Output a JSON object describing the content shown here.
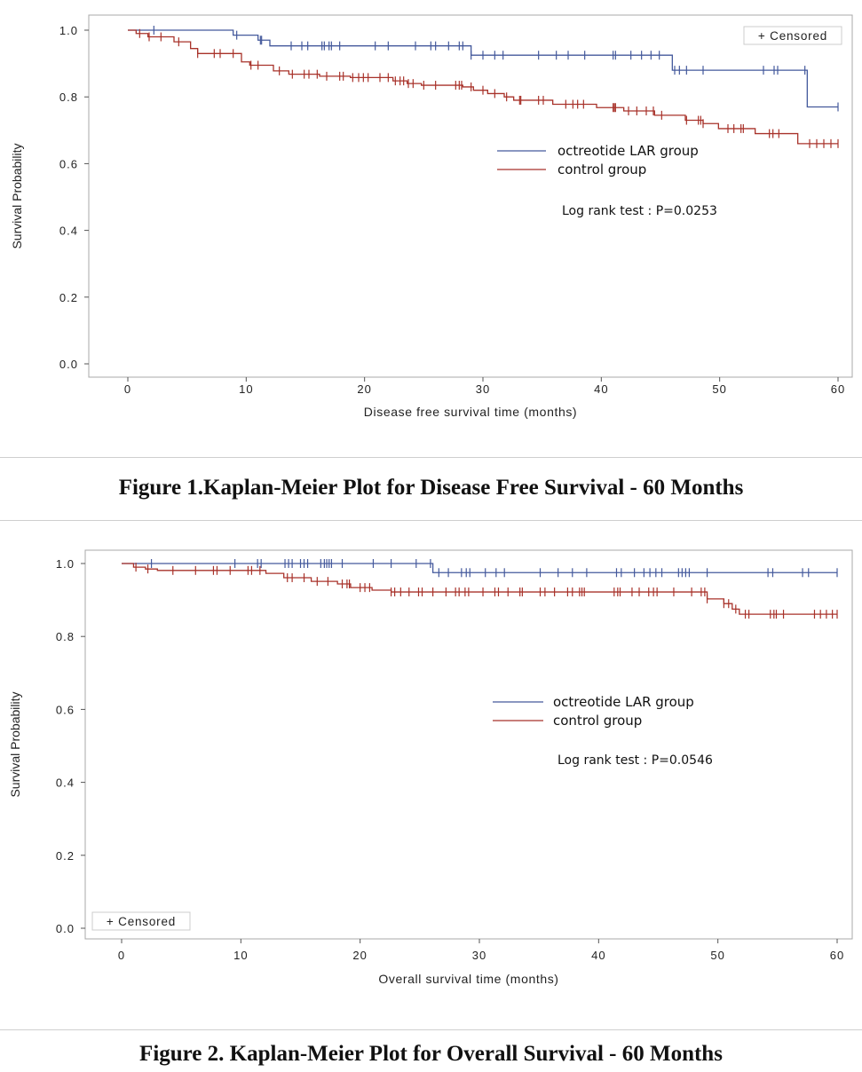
{
  "colors": {
    "octreotide": "#44599c",
    "control": "#a8322a",
    "frame": "#a8a8a8"
  },
  "chart_data": [
    {
      "type": "line",
      "subtype": "kaplan-meier step",
      "caption": "Figure 1.Kaplan-Meier Plot for Disease Free Survival - 60 Months",
      "xlabel": "Disease free survival time (months)",
      "ylabel": "Survival Probability",
      "xlim": [
        0,
        60
      ],
      "ylim": [
        0,
        1
      ],
      "xticks": [
        "0",
        "10",
        "20",
        "30",
        "40",
        "50",
        "60"
      ],
      "yticks": [
        "0.0",
        "0.2",
        "0.4",
        "0.6",
        "0.8",
        "1.0"
      ],
      "censored_legend": "+ Censored",
      "censored_legend_position": "top-right",
      "annotation": "Log rank test : P=0.0253",
      "series": [
        {
          "name": "octreotide LAR group",
          "color": "#44599c",
          "steps": [
            [
              0,
              1.0
            ],
            [
              8.9,
              0.985
            ],
            [
              11,
              0.97
            ],
            [
              12,
              0.953
            ],
            [
              29,
              0.925
            ],
            [
              46,
              0.88
            ],
            [
              57.4,
              0.77
            ],
            [
              60,
              0.77
            ]
          ],
          "censored": [
            2.2,
            9.2,
            11.2,
            11.3,
            13.8,
            14.7,
            15.2,
            16.4,
            16.6,
            17,
            17.2,
            17.9,
            20.9,
            22,
            24.3,
            25.6,
            26,
            27.1,
            28,
            28.3,
            29,
            30,
            31,
            31.7,
            34.7,
            36.2,
            37.2,
            38.6,
            41,
            41.2,
            42.5,
            43.4,
            44.2,
            44.9,
            46.2,
            46.6,
            47.2,
            48.6,
            53.7,
            54.6,
            54.9,
            57.2,
            60
          ]
        },
        {
          "name": "control group",
          "color": "#a8322a",
          "steps": [
            [
              0,
              1.0
            ],
            [
              0.7,
              0.99
            ],
            [
              1.7,
              0.98
            ],
            [
              3.9,
              0.965
            ],
            [
              5.3,
              0.945
            ],
            [
              5.9,
              0.93
            ],
            [
              9.6,
              0.905
            ],
            [
              10.3,
              0.895
            ],
            [
              12.3,
              0.878
            ],
            [
              13.6,
              0.868
            ],
            [
              16.2,
              0.862
            ],
            [
              18.8,
              0.858
            ],
            [
              22.4,
              0.848
            ],
            [
              23.6,
              0.84
            ],
            [
              24.8,
              0.835
            ],
            [
              28.3,
              0.83
            ],
            [
              29.2,
              0.82
            ],
            [
              30.4,
              0.81
            ],
            [
              31.8,
              0.8
            ],
            [
              32.6,
              0.79
            ],
            [
              35.9,
              0.778
            ],
            [
              39.6,
              0.768
            ],
            [
              41.9,
              0.758
            ],
            [
              44.5,
              0.745
            ],
            [
              47.1,
              0.73
            ],
            [
              48.6,
              0.72
            ],
            [
              49.9,
              0.705
            ],
            [
              53,
              0.69
            ],
            [
              56.6,
              0.66
            ],
            [
              60,
              0.66
            ]
          ],
          "censored": [
            1,
            1.8,
            2.8,
            4.3,
            5.9,
            7.3,
            7.8,
            8.9,
            10.4,
            11,
            12.8,
            13.9,
            14.9,
            15.3,
            16,
            16.8,
            17.9,
            18.2,
            19,
            19.5,
            19.9,
            20.3,
            21.3,
            22,
            22.6,
            23,
            23.3,
            23.7,
            24.1,
            25,
            26,
            27.7,
            28,
            28.2,
            29,
            30,
            31,
            32,
            33.1,
            33.2,
            34.7,
            35.1,
            37,
            37.6,
            38,
            38.5,
            41,
            41.1,
            41.2,
            42.3,
            43,
            43.8,
            44.4,
            45.1,
            47.2,
            48.2,
            48.4,
            48.6,
            50.7,
            51.2,
            51.8,
            52,
            54.2,
            54.5,
            55,
            57.6,
            58.2,
            58.8,
            59.4,
            60
          ]
        }
      ]
    },
    {
      "type": "line",
      "subtype": "kaplan-meier step",
      "caption": "Figure 2. Kaplan-Meier Plot for Overall Survival - 60 Months",
      "xlabel": "Overall survival time (months)",
      "ylabel": "Survival Probability",
      "xlim": [
        0,
        60
      ],
      "ylim": [
        0,
        1
      ],
      "xticks": [
        "0",
        "10",
        "20",
        "30",
        "40",
        "50",
        "60"
      ],
      "yticks": [
        "0.0",
        "0.2",
        "0.4",
        "0.6",
        "0.8",
        "1.0"
      ],
      "censored_legend": "+ Censored",
      "censored_legend_position": "bottom-left",
      "annotation": "Log rank test : P=0.0546",
      "series": [
        {
          "name": "octreotide LAR group",
          "color": "#44599c",
          "steps": [
            [
              0,
              1.0
            ],
            [
              26.1,
              0.975
            ],
            [
              60,
              0.975
            ]
          ],
          "censored": [
            2.5,
            9.5,
            11.4,
            11.7,
            13.7,
            14,
            14.3,
            15,
            15.3,
            15.6,
            16.7,
            17,
            17.2,
            17.4,
            17.6,
            18.5,
            21.1,
            22.6,
            24.7,
            25.9,
            26.6,
            27.4,
            28.5,
            28.9,
            29.2,
            30.5,
            31.4,
            32.1,
            35.1,
            36.6,
            37.8,
            39,
            41.5,
            41.9,
            43,
            43.8,
            44.3,
            44.8,
            45.3,
            46.7,
            47,
            47.3,
            47.6,
            49.1,
            54.2,
            54.6,
            57.1,
            57.6,
            60
          ]
        },
        {
          "name": "control group",
          "color": "#a8322a",
          "steps": [
            [
              0,
              1.0
            ],
            [
              1,
              0.99
            ],
            [
              2,
              0.985
            ],
            [
              3,
              0.981
            ],
            [
              12.1,
              0.973
            ],
            [
              13.6,
              0.961
            ],
            [
              15.9,
              0.951
            ],
            [
              18.1,
              0.944
            ],
            [
              19.2,
              0.934
            ],
            [
              21,
              0.927
            ],
            [
              22.6,
              0.922
            ],
            [
              49.1,
              0.903
            ],
            [
              50.5,
              0.89
            ],
            [
              51.2,
              0.875
            ],
            [
              51.8,
              0.861
            ],
            [
              60,
              0.861
            ]
          ],
          "censored": [
            1.2,
            2.2,
            4.3,
            6.2,
            7.7,
            8,
            9.1,
            10.6,
            10.9,
            11.6,
            13.9,
            14.3,
            15.3,
            16.4,
            17.3,
            18.5,
            18.9,
            19.1,
            20,
            20.4,
            20.8,
            22.6,
            22.9,
            23.4,
            24.1,
            24.9,
            25.2,
            26.1,
            27.2,
            28,
            28.3,
            28.8,
            29.1,
            30.3,
            31.3,
            31.6,
            32.4,
            33.4,
            33.6,
            35.1,
            35.5,
            36.3,
            37.4,
            37.8,
            38.4,
            38.6,
            38.8,
            41.3,
            41.6,
            41.8,
            42.8,
            43.4,
            44.2,
            44.6,
            44.9,
            46.3,
            47.8,
            48.6,
            48.9,
            49.1,
            50.5,
            50.9,
            51.5,
            52.3,
            52.6,
            54.4,
            54.7,
            54.9,
            55.5,
            58.1,
            58.6,
            59.1,
            59.6,
            60
          ]
        }
      ]
    }
  ]
}
